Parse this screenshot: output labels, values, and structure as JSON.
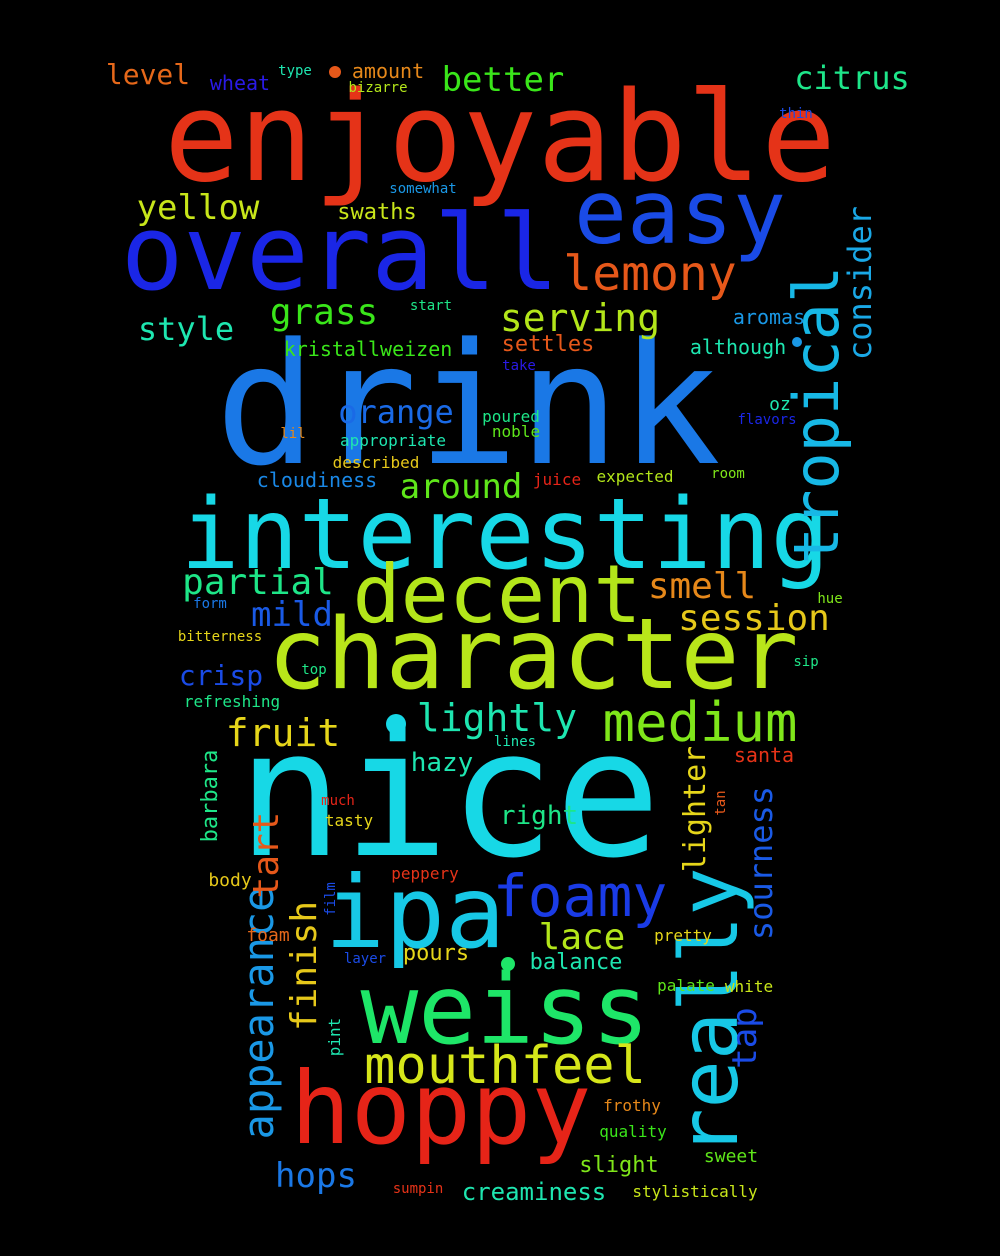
{
  "cloud": {
    "words": [
      {
        "text": "drink",
        "color": "#1a78e6"
      },
      {
        "text": "nice",
        "color": "#17d8e6"
      },
      {
        "text": "enjoyable",
        "color": "#e53318"
      },
      {
        "text": "interesting",
        "color": "#17d8e6"
      },
      {
        "text": "character",
        "color": "#b9e61a"
      },
      {
        "text": "overall",
        "color": "#1a26e6"
      },
      {
        "text": "easy",
        "color": "#1a4be6"
      },
      {
        "text": "weiss",
        "color": "#1ee668"
      },
      {
        "text": "hoppy",
        "color": "#e62418"
      },
      {
        "text": "decent",
        "color": "#b3e61a"
      },
      {
        "text": "ipa",
        "color": "#17c8e6"
      },
      {
        "text": "really",
        "color": "#17c8e6"
      },
      {
        "text": "tropical",
        "color": "#17b8e6"
      },
      {
        "text": "foamy",
        "color": "#1a3be6"
      },
      {
        "text": "medium",
        "color": "#7fe61a"
      },
      {
        "text": "mouthfeel",
        "color": "#d6e61a"
      },
      {
        "text": "lemony",
        "color": "#e6581a"
      },
      {
        "text": "appearance",
        "color": "#1a98e6"
      },
      {
        "text": "lightly",
        "color": "#1ee6b0"
      },
      {
        "text": "fruit",
        "color": "#e6d61a"
      },
      {
        "text": "smell",
        "color": "#e6881a"
      },
      {
        "text": "partial",
        "color": "#1ee688"
      },
      {
        "text": "session",
        "color": "#e6c81a"
      },
      {
        "text": "serving",
        "color": "#b3e61a"
      },
      {
        "text": "lace",
        "color": "#b3e61a"
      },
      {
        "text": "finish",
        "color": "#e6c81a"
      },
      {
        "text": "around",
        "color": "#5fe61a"
      },
      {
        "text": "orange",
        "color": "#1a6ae6"
      },
      {
        "text": "yellow",
        "color": "#c8e61a"
      },
      {
        "text": "style",
        "color": "#1ee6b0"
      },
      {
        "text": "grass",
        "color": "#3ae61a"
      },
      {
        "text": "better",
        "color": "#3ae61a"
      },
      {
        "text": "citrus",
        "color": "#1ee68a"
      },
      {
        "text": "consider",
        "color": "#1aa8e6"
      },
      {
        "text": "sourness",
        "color": "#1a5ae6"
      },
      {
        "text": "tart",
        "color": "#e6581a"
      },
      {
        "text": "hops",
        "color": "#1a78e6"
      },
      {
        "text": "mild",
        "color": "#1a5ae6"
      },
      {
        "text": "lighter",
        "color": "#e6d61a"
      },
      {
        "text": "crisp",
        "color": "#1a4be6"
      },
      {
        "text": "hazy",
        "color": "#1ee6b0"
      },
      {
        "text": "right",
        "color": "#1ee688"
      },
      {
        "text": "tap",
        "color": "#1a4be6"
      },
      {
        "text": "level",
        "color": "#e6681a"
      },
      {
        "text": "creaminess",
        "color": "#1ee6b0"
      },
      {
        "text": "slight",
        "color": "#7fe61a"
      },
      {
        "text": "balance",
        "color": "#1ee6b0"
      },
      {
        "text": "barbara",
        "color": "#1ee688"
      },
      {
        "text": "pours",
        "color": "#e6d61a"
      },
      {
        "text": "swaths",
        "color": "#c8e61a"
      },
      {
        "text": "settles",
        "color": "#e6581a"
      },
      {
        "text": "aromas",
        "color": "#1a98e6"
      },
      {
        "text": "although",
        "color": "#1ee6b0"
      },
      {
        "text": "kristallweizen",
        "color": "#3ae61a"
      },
      {
        "text": "cloudiness",
        "color": "#1a88e6"
      },
      {
        "text": "santa",
        "color": "#e63318"
      },
      {
        "text": "amount",
        "color": "#e6881a"
      },
      {
        "text": "wheat",
        "color": "#2a1ae6"
      },
      {
        "text": "body",
        "color": "#e6c81a"
      },
      {
        "text": "foam",
        "color": "#e6681a"
      },
      {
        "text": "sweet",
        "color": "#5fe61a"
      },
      {
        "text": "oz",
        "color": "#1ee6b0"
      },
      {
        "text": "appropriate",
        "color": "#1ee6b0"
      },
      {
        "text": "described",
        "color": "#e6c81a"
      },
      {
        "text": "poured",
        "color": "#1ee688"
      },
      {
        "text": "noble",
        "color": "#5fe61a"
      },
      {
        "text": "flavors",
        "color": "#1a26e6"
      },
      {
        "text": "juice",
        "color": "#e62418"
      },
      {
        "text": "expected",
        "color": "#b3e61a"
      },
      {
        "text": "room",
        "color": "#7fe61a"
      },
      {
        "text": "bitterness",
        "color": "#e6d61a"
      },
      {
        "text": "refreshing",
        "color": "#1ee688"
      },
      {
        "text": "top",
        "color": "#1ee688"
      },
      {
        "text": "sip",
        "color": "#1ee688"
      },
      {
        "text": "hue",
        "color": "#7fe61a"
      },
      {
        "text": "form",
        "color": "#1a78e6"
      },
      {
        "text": "lines",
        "color": "#1ee6b0"
      },
      {
        "text": "much",
        "color": "#e62418"
      },
      {
        "text": "tasty",
        "color": "#e6d61a"
      },
      {
        "text": "tan",
        "color": "#e6581a"
      },
      {
        "text": "peppery",
        "color": "#e63318"
      },
      {
        "text": "film",
        "color": "#1a4be6"
      },
      {
        "text": "layer",
        "color": "#1a4be6"
      },
      {
        "text": "pretty",
        "color": "#e6d61a"
      },
      {
        "text": "palate",
        "color": "#5fe61a"
      },
      {
        "text": "white",
        "color": "#c8e61a"
      },
      {
        "text": "pint",
        "color": "#1ee6b0"
      },
      {
        "text": "frothy",
        "color": "#e6881a"
      },
      {
        "text": "quality",
        "color": "#3ae61a"
      },
      {
        "text": "sumpin",
        "color": "#e63318"
      },
      {
        "text": "stylistically",
        "color": "#c8e61a"
      },
      {
        "text": "lil",
        "color": "#e6881a"
      },
      {
        "text": "type",
        "color": "#1ee6b0"
      },
      {
        "text": "bizarre",
        "color": "#b3e61a"
      },
      {
        "text": "thin",
        "color": "#1a4be6"
      },
      {
        "text": "somewhat",
        "color": "#1a98e6"
      },
      {
        "text": "start",
        "color": "#1ee688"
      },
      {
        "text": "take",
        "color": "#2a1ae6"
      }
    ],
    "dot_colors": {
      "orange_dot": "#e6581a",
      "cyan_dot": "#17d8e6",
      "blue_dot": "#1a98e6",
      "green_dot": "#1ee668"
    }
  }
}
